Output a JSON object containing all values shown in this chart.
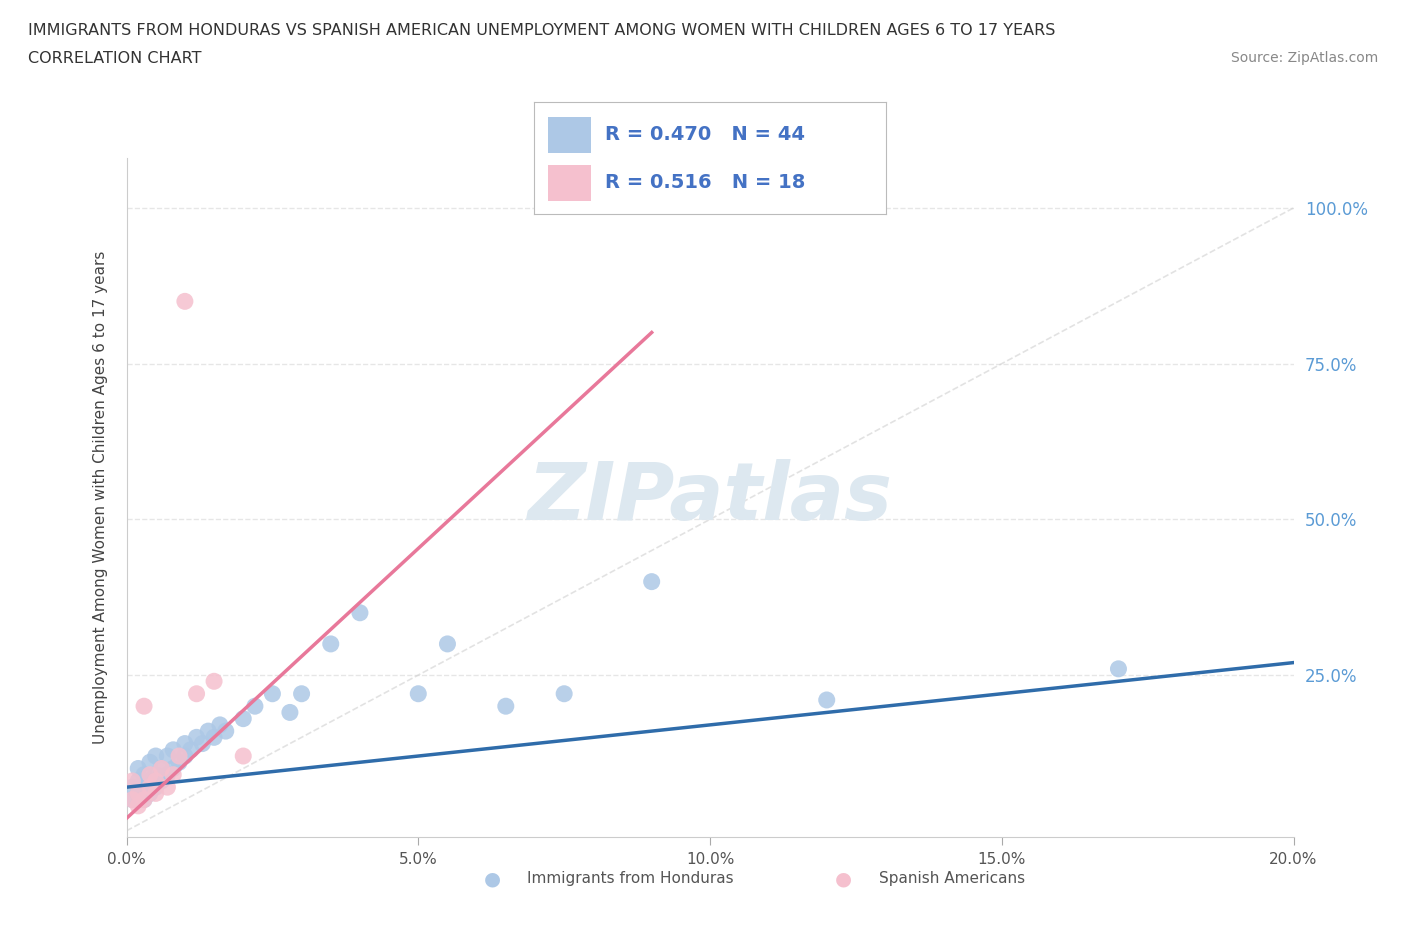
{
  "title_line1": "IMMIGRANTS FROM HONDURAS VS SPANISH AMERICAN UNEMPLOYMENT AMONG WOMEN WITH CHILDREN AGES 6 TO 17 YEARS",
  "title_line2": "CORRELATION CHART",
  "source": "Source: ZipAtlas.com",
  "ylabel": "Unemployment Among Women with Children Ages 6 to 17 years",
  "xlim": [
    0.0,
    0.2
  ],
  "ylim": [
    -0.01,
    1.08
  ],
  "xtick_vals": [
    0.0,
    0.05,
    0.1,
    0.15,
    0.2
  ],
  "xtick_labels": [
    "0.0%",
    "5.0%",
    "10.0%",
    "15.0%",
    "20.0%"
  ],
  "ytick_vals": [
    0.25,
    0.5,
    0.75,
    1.0
  ],
  "ytick_labels": [
    "25.0%",
    "50.0%",
    "75.0%",
    "100.0%"
  ],
  "blue_R": 0.47,
  "blue_N": 44,
  "pink_R": 0.516,
  "pink_N": 18,
  "blue_color": "#adc8e6",
  "blue_line_color": "#5b9bd5",
  "blue_line_color_dark": "#2f6caa",
  "pink_color": "#f5c0ce",
  "pink_line_color": "#e8789a",
  "diag_color": "#d0d0d0",
  "grid_color": "#e0e0e0",
  "watermark_color": "#dde8f0",
  "legend_label_blue": "Immigrants from Honduras",
  "legend_label_pink": "Spanish Americans",
  "blue_scatter_x": [
    0.001,
    0.001,
    0.002,
    0.002,
    0.002,
    0.003,
    0.003,
    0.003,
    0.004,
    0.004,
    0.004,
    0.005,
    0.005,
    0.005,
    0.006,
    0.006,
    0.007,
    0.007,
    0.008,
    0.008,
    0.009,
    0.01,
    0.01,
    0.011,
    0.012,
    0.013,
    0.014,
    0.015,
    0.016,
    0.017,
    0.02,
    0.022,
    0.025,
    0.028,
    0.03,
    0.035,
    0.04,
    0.05,
    0.055,
    0.065,
    0.075,
    0.09,
    0.12,
    0.17
  ],
  "blue_scatter_y": [
    0.05,
    0.07,
    0.06,
    0.08,
    0.1,
    0.05,
    0.07,
    0.09,
    0.06,
    0.08,
    0.11,
    0.07,
    0.09,
    0.12,
    0.08,
    0.1,
    0.09,
    0.12,
    0.1,
    0.13,
    0.11,
    0.12,
    0.14,
    0.13,
    0.15,
    0.14,
    0.16,
    0.15,
    0.17,
    0.16,
    0.18,
    0.2,
    0.22,
    0.19,
    0.22,
    0.3,
    0.35,
    0.22,
    0.3,
    0.2,
    0.22,
    0.4,
    0.21,
    0.26
  ],
  "pink_scatter_x": [
    0.001,
    0.001,
    0.002,
    0.002,
    0.003,
    0.003,
    0.004,
    0.004,
    0.005,
    0.005,
    0.006,
    0.007,
    0.008,
    0.009,
    0.01,
    0.012,
    0.015,
    0.02
  ],
  "pink_scatter_y": [
    0.05,
    0.08,
    0.04,
    0.06,
    0.05,
    0.2,
    0.07,
    0.09,
    0.06,
    0.08,
    0.1,
    0.07,
    0.09,
    0.12,
    0.85,
    0.22,
    0.24,
    0.12
  ],
  "blue_trend_x0": 0.0,
  "blue_trend_x1": 0.2,
  "blue_trend_y0": 0.07,
  "blue_trend_y1": 0.27,
  "pink_trend_x0": 0.0,
  "pink_trend_x1": 0.09,
  "pink_trend_y0": 0.02,
  "pink_trend_y1": 0.8
}
